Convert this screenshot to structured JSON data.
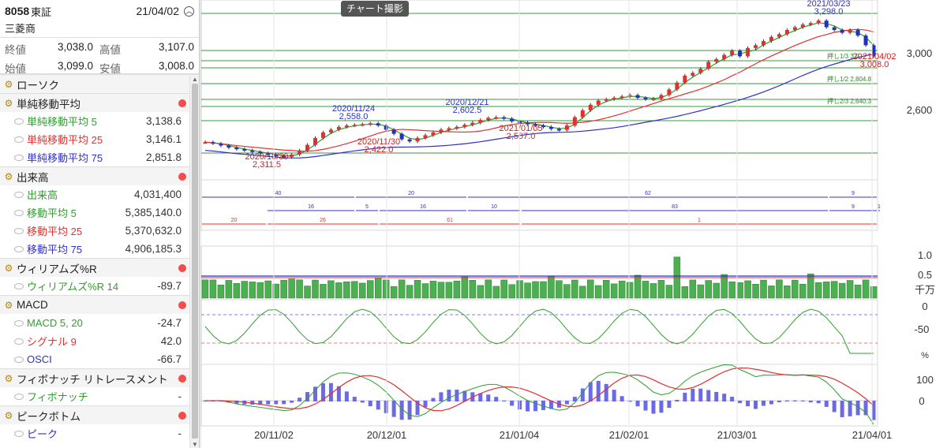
{
  "header": {
    "code": "8058",
    "market": "東証",
    "date": "21/04/02",
    "name": "三菱商"
  },
  "prices": [
    {
      "label": "終値",
      "value": "3,038.0"
    },
    {
      "label": "高値",
      "value": "3,107.0"
    },
    {
      "label": "始値",
      "value": "3,099.0"
    },
    {
      "label": "安値",
      "value": "3,008.0"
    }
  ],
  "sections": [
    {
      "title": "ローソク",
      "dot": false,
      "items": []
    },
    {
      "title": "単純移動平均",
      "dot": true,
      "items": [
        {
          "label": "単純移動平均 5",
          "value": "3,138.6",
          "color": "#2e9e2e"
        },
        {
          "label": "単純移動平均 25",
          "value": "3,146.1",
          "color": "#e03030"
        },
        {
          "label": "単純移動平均 75",
          "value": "2,851.8",
          "color": "#3030c8"
        }
      ]
    },
    {
      "title": "出来高",
      "dot": true,
      "items": [
        {
          "label": "出来高",
          "value": "4,031,400",
          "color": "#2e9e2e"
        },
        {
          "label": "移動平均 5",
          "value": "5,385,140.0",
          "color": "#2e9e2e"
        },
        {
          "label": "移動平均 25",
          "value": "5,370,632.0",
          "color": "#e03030"
        },
        {
          "label": "移動平均 75",
          "value": "4,906,185.3",
          "color": "#3030c8"
        }
      ]
    },
    {
      "title": "ウィリアムズ%R",
      "dot": true,
      "items": [
        {
          "label": "ウィリアムズ%R 14",
          "value": "-89.7",
          "color": "#2e9e2e"
        }
      ]
    },
    {
      "title": "MACD",
      "dot": true,
      "items": [
        {
          "label": "MACD 5, 20",
          "value": "-24.7",
          "color": "#2e9e2e"
        },
        {
          "label": "シグナル 9",
          "value": "42.0",
          "color": "#e03030"
        },
        {
          "label": "OSCI",
          "value": "-66.7",
          "color": "#3030c8"
        }
      ]
    },
    {
      "title": "フィボナッチ リトレースメント",
      "dot": true,
      "items": [
        {
          "label": "フィボナッチ",
          "value": "-",
          "color": "#2e9e2e"
        }
      ]
    },
    {
      "title": "ピークボトム",
      "dot": true,
      "items": [
        {
          "label": "ピーク",
          "value": "-",
          "color": "#3030c8"
        }
      ]
    }
  ],
  "toolbar": {
    "snapshot_label": "チャート撮影"
  },
  "chart_data": {
    "type": "candlestick",
    "x_ticks": [
      "20/11/02",
      "20/12/01",
      "21/01/04",
      "21/02/01",
      "21/03/01",
      "21/04/01"
    ],
    "price_axis": {
      "ticks": [
        "3,000",
        "2,600"
      ],
      "range": [
        2250,
        3350
      ]
    },
    "annotations": [
      {
        "date": "2020/10/30",
        "value": "2,311.5",
        "kind": "bottom"
      },
      {
        "date": "2020/11/24",
        "value": "2,558.0",
        "kind": "peak"
      },
      {
        "date": "2020/11/30",
        "value": "2,422.0",
        "kind": "bottom"
      },
      {
        "date": "2020/12/21",
        "value": "2,602.5",
        "kind": "peak"
      },
      {
        "date": "2021/01/05",
        "value": "2,507.0",
        "kind": "bottom"
      },
      {
        "date": "2021/03/23",
        "value": "3,298.0",
        "kind": "peak"
      },
      {
        "date": "2021/04/02",
        "value": "3,008.0",
        "kind": "bottom"
      }
    ],
    "fibonacci": [
      {
        "label": "押し1/3",
        "value": "3,0.."
      },
      {
        "label": "押し1/2",
        "value": "2,804.8"
      },
      {
        "label": "押し2/3",
        "value": "2,640.3"
      }
    ],
    "peak_bottom_rows": [
      {
        "color": "#3030c8",
        "labels": [
          "40",
          "20",
          "62",
          "9"
        ]
      },
      {
        "color": "#3030c8",
        "labels": [
          "16",
          "5",
          "16",
          "10",
          "83",
          "9",
          "1"
        ]
      },
      {
        "color": "#e03030",
        "labels": [
          "20",
          "26",
          "61",
          "1"
        ]
      }
    ],
    "volume_axis": {
      "ticks": [
        "1.0",
        "0.5"
      ],
      "unit": "千万"
    },
    "williams_axis": {
      "ticks": [
        "0",
        "-50"
      ],
      "unit": "%"
    },
    "macd_axis": {
      "ticks": [
        "100",
        "0"
      ]
    },
    "series": [
      {
        "name": "単純移動平均 5",
        "color": "#2e9e2e"
      },
      {
        "name": "単純移動平均 25",
        "color": "#e03030"
      },
      {
        "name": "単純移動平均 75",
        "color": "#3030c8"
      }
    ],
    "closes": [
      2420,
      2410,
      2395,
      2380,
      2370,
      2360,
      2350,
      2340,
      2330,
      2320,
      2312,
      2330,
      2360,
      2400,
      2450,
      2490,
      2510,
      2530,
      2540,
      2545,
      2550,
      2556,
      2540,
      2510,
      2480,
      2440,
      2425,
      2450,
      2470,
      2490,
      2510,
      2520,
      2530,
      2545,
      2560,
      2580,
      2595,
      2600,
      2590,
      2570,
      2560,
      2550,
      2540,
      2530,
      2515,
      2508,
      2540,
      2600,
      2650,
      2690,
      2720,
      2730,
      2740,
      2750,
      2760,
      2740,
      2730,
      2735,
      2760,
      2800,
      2850,
      2900,
      2920,
      2950,
      3000,
      3020,
      3050,
      3080,
      3040,
      3100,
      3120,
      3150,
      3180,
      3200,
      3230,
      3250,
      3270,
      3280,
      3298,
      3250,
      3230,
      3210,
      3230,
      3190,
      3120,
      3040
    ]
  }
}
